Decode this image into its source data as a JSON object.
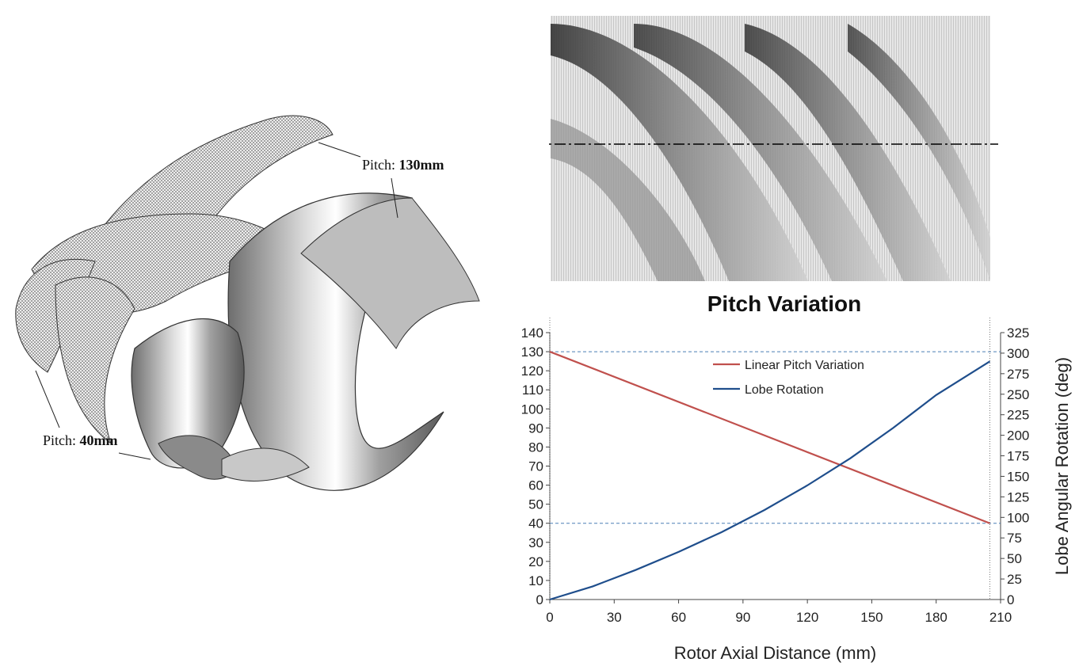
{
  "labels": {
    "pitch_prefix": "Pitch:",
    "pitch_high": "130mm",
    "pitch_low": "40mm"
  },
  "chart_data": {
    "type": "line",
    "title": "Pitch Variation",
    "xlabel": "Rotor Axial Distance (mm)",
    "ylabel": "",
    "y2label": "Lobe Angular Rotation (deg)",
    "xlim": [
      0,
      210
    ],
    "ylim": [
      0,
      140
    ],
    "y2lim": [
      0,
      325
    ],
    "xticks": [
      0,
      30,
      60,
      90,
      120,
      150,
      180,
      210
    ],
    "yticks": [
      0,
      10,
      20,
      30,
      40,
      50,
      60,
      70,
      80,
      90,
      100,
      110,
      120,
      130,
      140
    ],
    "y2ticks": [
      0,
      25,
      50,
      75,
      100,
      125,
      150,
      175,
      200,
      225,
      250,
      275,
      300,
      325
    ],
    "reference_lines_y": [
      130,
      40
    ],
    "legend_position": "top-center",
    "series": [
      {
        "name": "Linear Pitch Variation",
        "axis": "left",
        "color": "#c0504d",
        "x": [
          0,
          205
        ],
        "y": [
          130,
          40
        ]
      },
      {
        "name": "Lobe Rotation",
        "axis": "right",
        "color": "#1f4e8c",
        "x": [
          0,
          20,
          40,
          60,
          80,
          100,
          120,
          140,
          160,
          180,
          205
        ],
        "y": [
          0,
          16,
          36,
          58,
          82,
          109,
          139,
          172,
          209,
          249,
          290
        ]
      }
    ]
  }
}
